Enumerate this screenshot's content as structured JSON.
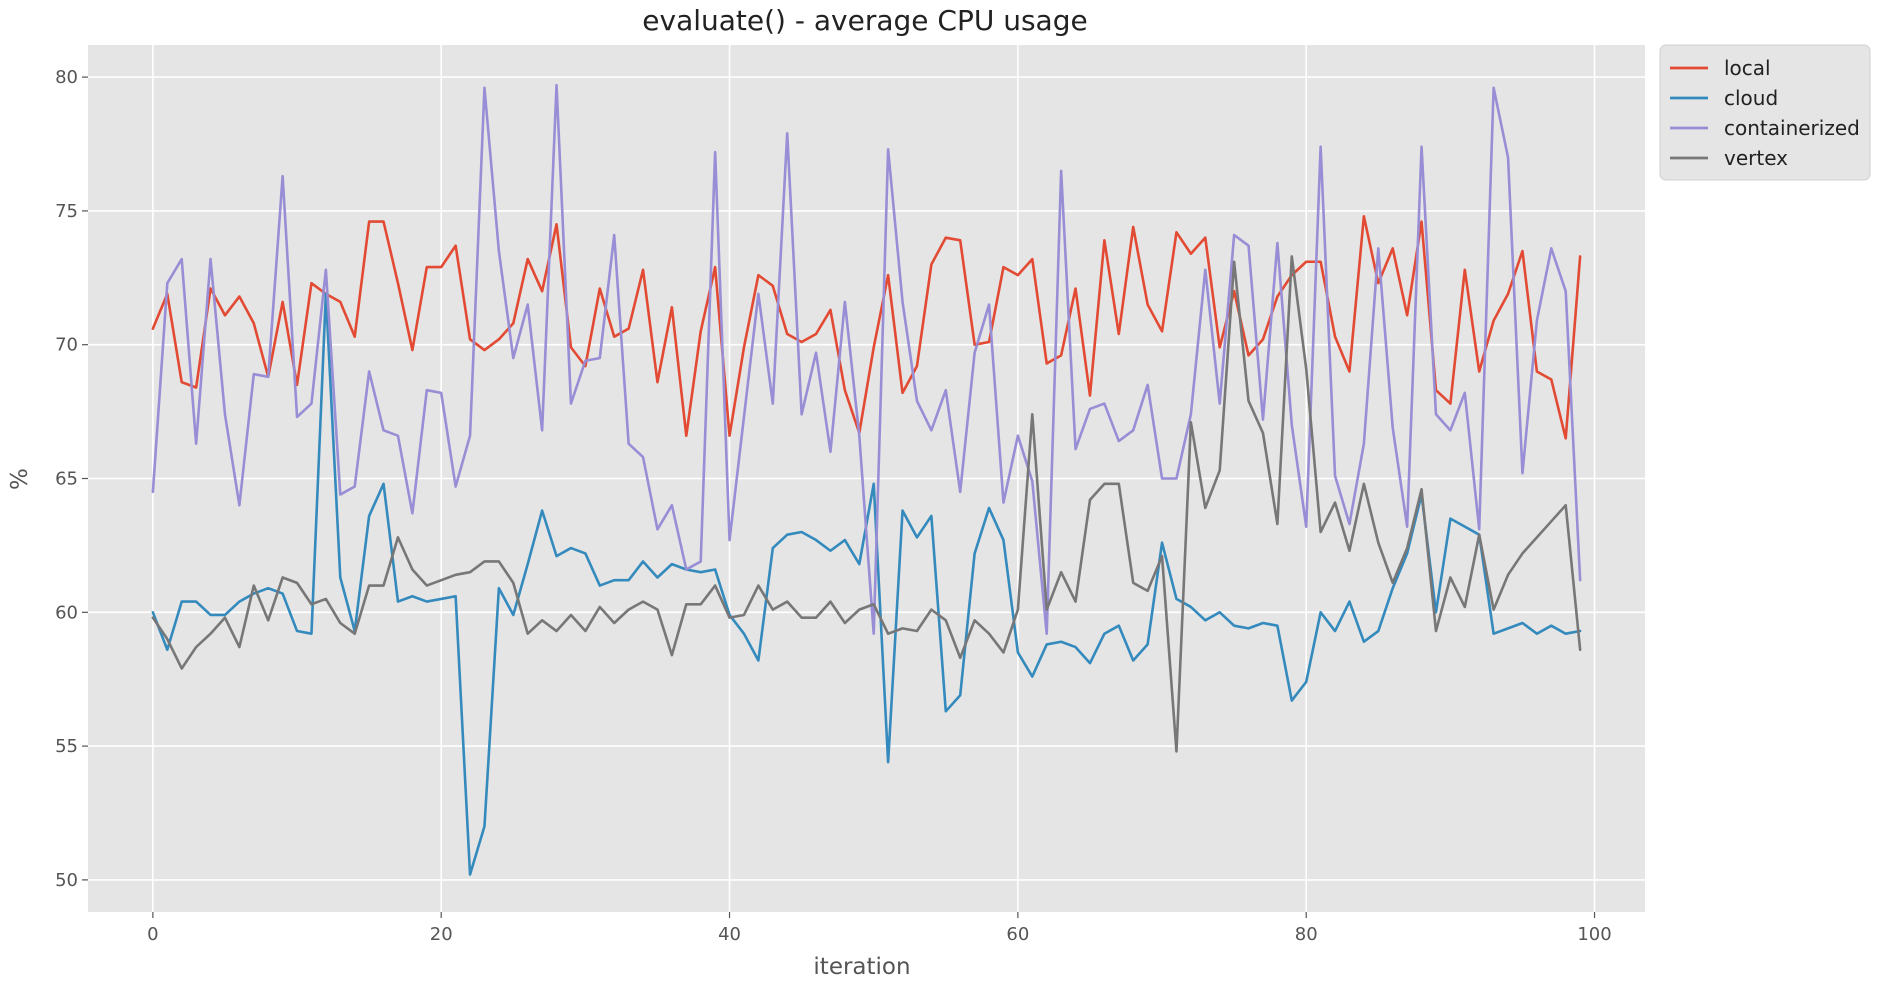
{
  "chart_data": {
    "type": "line",
    "title": "evaluate() - average CPU usage",
    "xlabel": "iteration",
    "ylabel": "%",
    "xlim": [
      -4.5,
      103.5
    ],
    "ylim": [
      48.8,
      81.2
    ],
    "xticks": [
      0,
      20,
      40,
      60,
      80,
      100
    ],
    "yticks": [
      50,
      55,
      60,
      65,
      70,
      75,
      80
    ],
    "grid": true,
    "legend_position": "outside-top-right",
    "colors": {
      "background": "#e5e5e5",
      "grid": "#ffffff",
      "text": "#555555"
    },
    "x": [
      0,
      1,
      2,
      3,
      4,
      5,
      6,
      7,
      8,
      9,
      10,
      11,
      12,
      13,
      14,
      15,
      16,
      17,
      18,
      19,
      20,
      21,
      22,
      23,
      24,
      25,
      26,
      27,
      28,
      29,
      30,
      31,
      32,
      33,
      34,
      35,
      36,
      37,
      38,
      39,
      40,
      41,
      42,
      43,
      44,
      45,
      46,
      47,
      48,
      49,
      50,
      51,
      52,
      53,
      54,
      55,
      56,
      57,
      58,
      59,
      60,
      61,
      62,
      63,
      64,
      65,
      66,
      67,
      68,
      69,
      70,
      71,
      72,
      73,
      74,
      75,
      76,
      77,
      78,
      79,
      80,
      81,
      82,
      83,
      84,
      85,
      86,
      87,
      88,
      89,
      90,
      91,
      92,
      93,
      94,
      95,
      96,
      97,
      98,
      99
    ],
    "series": [
      {
        "name": "local",
        "color": "#e24a33",
        "values": [
          70.6,
          71.9,
          68.6,
          68.4,
          72.1,
          71.1,
          71.8,
          70.8,
          68.8,
          71.6,
          68.5,
          72.3,
          71.9,
          71.6,
          70.3,
          74.6,
          74.6,
          72.3,
          69.8,
          72.9,
          72.9,
          73.7,
          70.2,
          69.8,
          70.2,
          70.8,
          73.2,
          72.0,
          74.5,
          69.9,
          69.2,
          72.1,
          70.3,
          70.6,
          72.8,
          68.6,
          71.4,
          66.6,
          70.5,
          72.9,
          66.6,
          69.9,
          72.6,
          72.2,
          70.4,
          70.1,
          70.4,
          71.3,
          68.3,
          66.7,
          69.9,
          72.6,
          68.2,
          69.2,
          73.0,
          74.0,
          73.9,
          70.0,
          70.1,
          72.9,
          72.6,
          73.2,
          69.3,
          69.6,
          72.1,
          68.1,
          73.9,
          70.4,
          74.4,
          71.5,
          70.5,
          74.2,
          73.4,
          74.0,
          69.9,
          72.0,
          69.6,
          70.2,
          71.8,
          72.6,
          73.1,
          73.1,
          70.3,
          69.0,
          74.8,
          72.3,
          73.6,
          71.1,
          74.6,
          68.3,
          67.8,
          72.8,
          69.0,
          70.9,
          71.9,
          73.5,
          69.0,
          68.7,
          66.5,
          73.3
        ]
      },
      {
        "name": "cloud",
        "color": "#348abd",
        "values": [
          60.0,
          58.6,
          60.4,
          60.4,
          59.9,
          59.9,
          60.4,
          60.7,
          60.9,
          60.7,
          59.3,
          59.2,
          71.9,
          61.3,
          59.3,
          63.6,
          64.8,
          60.4,
          60.6,
          60.4,
          60.5,
          60.6,
          50.2,
          52.0,
          60.9,
          59.9,
          61.8,
          63.8,
          62.1,
          62.4,
          62.2,
          61.0,
          61.2,
          61.2,
          61.9,
          61.3,
          61.8,
          61.6,
          61.5,
          61.6,
          59.9,
          59.2,
          58.2,
          62.4,
          62.9,
          63.0,
          62.7,
          62.3,
          62.7,
          61.8,
          64.8,
          54.4,
          63.8,
          62.8,
          63.6,
          56.3,
          56.9,
          62.2,
          63.9,
          62.7,
          58.5,
          57.6,
          58.8,
          58.9,
          58.7,
          58.1,
          59.2,
          59.5,
          58.2,
          58.8,
          62.6,
          60.5,
          60.2,
          59.7,
          60.0,
          59.5,
          59.4,
          59.6,
          59.5,
          56.7,
          57.4,
          60.0,
          59.3,
          60.4,
          58.9,
          59.3,
          60.9,
          62.2,
          64.4,
          60.0,
          63.5,
          63.2,
          62.9,
          59.2,
          59.4,
          59.6,
          59.2,
          59.5,
          59.2,
          59.3
        ]
      },
      {
        "name": "containerized",
        "color": "#988ed5",
        "values": [
          64.5,
          72.3,
          73.2,
          66.3,
          73.2,
          67.4,
          64.0,
          68.9,
          68.8,
          76.3,
          67.3,
          67.8,
          72.8,
          64.4,
          64.7,
          69.0,
          66.8,
          66.6,
          63.7,
          68.3,
          68.2,
          64.7,
          66.6,
          79.6,
          73.5,
          69.5,
          71.5,
          66.8,
          79.7,
          67.8,
          69.4,
          69.5,
          74.1,
          66.3,
          65.8,
          63.1,
          64.0,
          61.6,
          61.9,
          77.2,
          62.7,
          67.3,
          71.9,
          67.8,
          77.9,
          67.4,
          69.7,
          66.0,
          71.6,
          66.6,
          59.2,
          77.3,
          71.6,
          67.9,
          66.8,
          68.3,
          64.5,
          69.7,
          71.5,
          64.1,
          66.6,
          64.9,
          59.2,
          76.5,
          66.1,
          67.6,
          67.8,
          66.4,
          66.8,
          68.5,
          65.0,
          65.0,
          67.4,
          72.8,
          67.8,
          74.1,
          73.7,
          67.2,
          73.8,
          67.0,
          63.2,
          77.4,
          65.1,
          63.3,
          66.3,
          73.6,
          66.9,
          63.2,
          77.4,
          67.4,
          66.8,
          68.2,
          63.1,
          79.6,
          77.0,
          65.2,
          70.9,
          73.6,
          72.0,
          61.2
        ]
      },
      {
        "name": "vertex",
        "color": "#777777",
        "values": [
          59.8,
          59.0,
          57.9,
          58.7,
          59.2,
          59.8,
          58.7,
          61.0,
          59.7,
          61.3,
          61.1,
          60.3,
          60.5,
          59.6,
          59.2,
          61.0,
          61.0,
          62.8,
          61.6,
          61.0,
          61.2,
          61.4,
          61.5,
          61.9,
          61.9,
          61.1,
          59.2,
          59.7,
          59.3,
          59.9,
          59.3,
          60.2,
          59.6,
          60.1,
          60.4,
          60.1,
          58.4,
          60.3,
          60.3,
          61.0,
          59.8,
          59.9,
          61.0,
          60.1,
          60.4,
          59.8,
          59.8,
          60.4,
          59.6,
          60.1,
          60.3,
          59.2,
          59.4,
          59.3,
          60.1,
          59.7,
          58.3,
          59.7,
          59.2,
          58.5,
          60.1,
          67.4,
          60.1,
          61.5,
          60.4,
          64.2,
          64.8,
          64.8,
          61.1,
          60.8,
          62.1,
          54.8,
          67.1,
          63.9,
          65.3,
          73.1,
          67.9,
          66.7,
          63.3,
          73.3,
          69.1,
          63.0,
          64.1,
          62.3,
          64.8,
          62.6,
          61.1,
          62.4,
          64.6,
          59.3,
          61.3,
          60.2,
          62.9,
          60.1,
          61.4,
          62.2,
          62.8,
          63.4,
          64.0,
          58.6
        ]
      }
    ]
  }
}
